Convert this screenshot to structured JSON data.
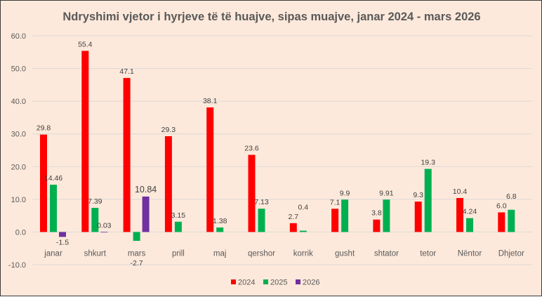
{
  "chart_data": {
    "type": "bar",
    "title": "Ndryshimi vjetor i hyrjeve të të huajve, sipas muajve, janar 2024 - mars 2026",
    "xlabel": "",
    "ylabel": "",
    "ylim": [
      -10,
      60
    ],
    "yticks": [
      "-10.0",
      "0.0",
      "10.0",
      "20.0",
      "30.0",
      "40.0",
      "50.0",
      "60.0"
    ],
    "grid": true,
    "legend_position": "bottom",
    "categories": [
      "janar",
      "shkurt",
      "mars",
      "prill",
      "maj",
      "qershor",
      "korrik",
      "gusht",
      "shtator",
      "tetor",
      "Nëntor",
      "Dhjetor"
    ],
    "series": [
      {
        "name": "2024",
        "color": "#ff0000",
        "values": [
          29.8,
          55.4,
          47.1,
          29.3,
          38.1,
          23.6,
          2.7,
          7.1,
          3.8,
          9.3,
          10.4,
          6.0
        ],
        "labels": [
          "29.8",
          "55.4",
          "47.1",
          "29.3",
          "38.1",
          "23.6",
          "2.7",
          "7.1",
          "3.8",
          "9.3",
          "10.4",
          "6.0"
        ]
      },
      {
        "name": "2025",
        "color": "#00b050",
        "values": [
          14.46,
          7.39,
          -2.7,
          3.15,
          1.38,
          7.13,
          0.4,
          9.9,
          9.91,
          19.3,
          4.24,
          6.8
        ],
        "labels": [
          "14.46",
          "7.39",
          "-2.7",
          "3.15",
          "1.38",
          "7.13",
          "0.4",
          "9.9",
          "9.91",
          "19.3",
          "4.24",
          "6.8"
        ]
      },
      {
        "name": "2026",
        "color": "#7030a0",
        "values": [
          -1.5,
          0.03,
          10.84,
          null,
          null,
          null,
          null,
          null,
          null,
          null,
          null,
          null
        ],
        "labels": [
          "-1.5",
          "0.03",
          "10.84",
          null,
          null,
          null,
          null,
          null,
          null,
          null,
          null,
          null
        ]
      }
    ]
  }
}
